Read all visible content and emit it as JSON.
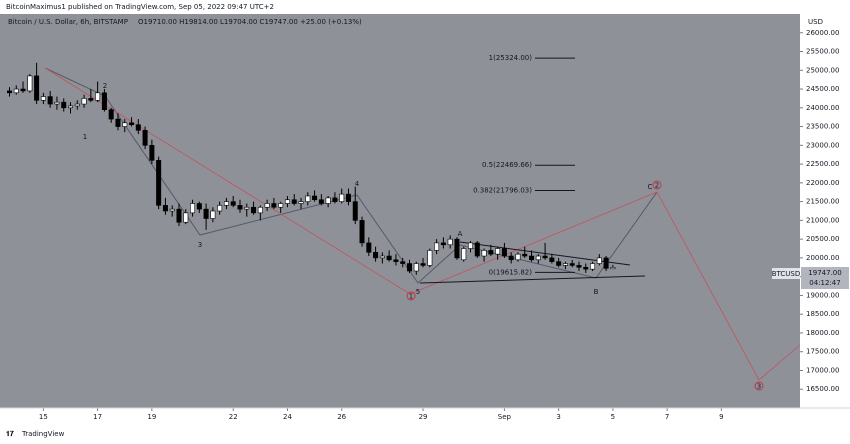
{
  "chart_data": {
    "type": "candlestick",
    "header": "BitcoinMaximus1 published on TradingView.com, Sep 05, 2022 09:47 UTC+2",
    "title": "Bitcoin / U.S. Dollar, 6h, BITSTAMP",
    "ohlc_legend": "O19710.00 H19814.00 L19704.00 C19747.00 +25.00 (+0.13%)",
    "y_axis_label": "USD",
    "symbol": "BTCUSD",
    "last_price_label": "19747.00",
    "countdown": "04:12:47",
    "footer": "TradingView",
    "up_color": "#ffffff",
    "down_color": "#000000",
    "background": "#8f9199",
    "ylim": [
      16000,
      26500
    ],
    "yticks": [
      {
        "value": 16500,
        "label": "16500.00"
      },
      {
        "value": 17000,
        "label": "17000.00"
      },
      {
        "value": 17500,
        "label": "17500.00"
      },
      {
        "value": 18000,
        "label": "18000.00"
      },
      {
        "value": 18500,
        "label": "18500.00"
      },
      {
        "value": 19000,
        "label": "19000.00"
      },
      {
        "value": 19500,
        "label": "19500.00"
      },
      {
        "value": 20000,
        "label": "20000.00"
      },
      {
        "value": 20500,
        "label": "20500.00"
      },
      {
        "value": 21000,
        "label": "21000.00"
      },
      {
        "value": 21500,
        "label": "21500.00"
      },
      {
        "value": 22000,
        "label": "22000.00"
      },
      {
        "value": 22500,
        "label": "22500.00"
      },
      {
        "value": 23000,
        "label": "23000.00"
      },
      {
        "value": 23500,
        "label": "23500.00"
      },
      {
        "value": 24000,
        "label": "24000.00"
      },
      {
        "value": 24500,
        "label": "24500.00"
      },
      {
        "value": 25000,
        "label": "25000.00"
      },
      {
        "value": 25500,
        "label": "25500.00"
      },
      {
        "value": 26000,
        "label": "26000.00"
      }
    ],
    "xlim": [
      -1.4,
      116.6
    ],
    "xticks": [
      {
        "value": 5,
        "label": "15"
      },
      {
        "value": 13,
        "label": "17"
      },
      {
        "value": 21,
        "label": "19"
      },
      {
        "value": 33,
        "label": "22"
      },
      {
        "value": 41,
        "label": "24"
      },
      {
        "value": 49,
        "label": "26"
      },
      {
        "value": 61,
        "label": "29"
      },
      {
        "value": 73,
        "label": "Sep"
      },
      {
        "value": 81,
        "label": "3"
      },
      {
        "value": 89,
        "label": "5"
      },
      {
        "value": 97,
        "label": "7"
      },
      {
        "value": 105,
        "label": "9"
      }
    ],
    "ohlc": [
      [
        24450,
        24550,
        24300,
        24400
      ],
      [
        24400,
        24600,
        24350,
        24500
      ],
      [
        24500,
        24700,
        24400,
        24450
      ],
      [
        24450,
        24900,
        24400,
        24850
      ],
      [
        24850,
        25200,
        24100,
        24200
      ],
      [
        24200,
        24400,
        24100,
        24300
      ],
      [
        24300,
        24450,
        24000,
        24100
      ],
      [
        24100,
        24300,
        23950,
        24150
      ],
      [
        24150,
        24250,
        23900,
        24000
      ],
      [
        24000,
        24150,
        23850,
        24050
      ],
      [
        24050,
        24200,
        23950,
        24100
      ],
      [
        24100,
        24350,
        24000,
        24250
      ],
      [
        24250,
        24500,
        24150,
        24200
      ],
      [
        24200,
        24700,
        24150,
        24400
      ],
      [
        24400,
        24500,
        23900,
        23950
      ],
      [
        23950,
        24000,
        23600,
        23700
      ],
      [
        23700,
        23850,
        23400,
        23500
      ],
      [
        23500,
        23700,
        23350,
        23600
      ],
      [
        23600,
        23750,
        23500,
        23550
      ],
      [
        23550,
        23700,
        23300,
        23400
      ],
      [
        23400,
        23500,
        22900,
        23000
      ],
      [
        23000,
        23150,
        22500,
        22600
      ],
      [
        22600,
        22700,
        21300,
        21400
      ],
      [
        21400,
        21600,
        21150,
        21250
      ],
      [
        21250,
        21400,
        21100,
        21300
      ],
      [
        21300,
        21450,
        20850,
        20950
      ],
      [
        20950,
        21300,
        20900,
        21200
      ],
      [
        21200,
        21550,
        21100,
        21450
      ],
      [
        21450,
        21500,
        21200,
        21300
      ],
      [
        21300,
        21450,
        20750,
        21050
      ],
      [
        21050,
        21350,
        20950,
        21250
      ],
      [
        21250,
        21500,
        21150,
        21400
      ],
      [
        21400,
        21600,
        21300,
        21500
      ],
      [
        21500,
        21650,
        21350,
        21400
      ],
      [
        21400,
        21550,
        21200,
        21300
      ],
      [
        21300,
        21450,
        21100,
        21350
      ],
      [
        21350,
        21500,
        21150,
        21200
      ],
      [
        21200,
        21400,
        21000,
        21350
      ],
      [
        21350,
        21550,
        21250,
        21450
      ],
      [
        21450,
        21600,
        21300,
        21350
      ],
      [
        21350,
        21500,
        21200,
        21450
      ],
      [
        21450,
        21650,
        21350,
        21550
      ],
      [
        21550,
        21700,
        21400,
        21450
      ],
      [
        21450,
        21600,
        21300,
        21500
      ],
      [
        21500,
        21750,
        21400,
        21650
      ],
      [
        21650,
        21800,
        21500,
        21550
      ],
      [
        21550,
        21700,
        21400,
        21450
      ],
      [
        21450,
        21650,
        21350,
        21600
      ],
      [
        21600,
        21750,
        21450,
        21500
      ],
      [
        21500,
        21850,
        21450,
        21700
      ],
      [
        21700,
        21850,
        21400,
        21500
      ],
      [
        21500,
        21900,
        20900,
        21000
      ],
      [
        21000,
        21100,
        20300,
        20400
      ],
      [
        20400,
        20550,
        20050,
        20150
      ],
      [
        20150,
        20300,
        19900,
        20000
      ],
      [
        20000,
        20150,
        19850,
        20050
      ],
      [
        20050,
        20200,
        19900,
        19950
      ],
      [
        19950,
        20100,
        19800,
        19900
      ],
      [
        19900,
        20000,
        19750,
        19850
      ],
      [
        19850,
        19950,
        19600,
        19650
      ],
      [
        19650,
        19900,
        19550,
        19850
      ],
      [
        19850,
        20000,
        19750,
        19800
      ],
      [
        19800,
        20250,
        19750,
        20200
      ],
      [
        20200,
        20500,
        20100,
        20400
      ],
      [
        20400,
        20550,
        20250,
        20350
      ],
      [
        20350,
        20600,
        20250,
        20500
      ],
      [
        20500,
        20550,
        19950,
        20000
      ],
      [
        19950,
        20300,
        19900,
        20250
      ],
      [
        20250,
        20450,
        20150,
        20400
      ],
      [
        20400,
        20450,
        20000,
        20050
      ],
      [
        20050,
        20250,
        19900,
        20200
      ],
      [
        20200,
        20350,
        20050,
        20100
      ],
      [
        20100,
        20300,
        19950,
        20250
      ],
      [
        20250,
        20400,
        20000,
        20050
      ],
      [
        20050,
        20150,
        19850,
        19950
      ],
      [
        19950,
        20150,
        19900,
        20100
      ],
      [
        20100,
        20300,
        20000,
        20050
      ],
      [
        20050,
        20200,
        19900,
        19950
      ],
      [
        19950,
        20100,
        19850,
        20050
      ],
      [
        20050,
        20400,
        19950,
        20000
      ],
      [
        20000,
        20100,
        19850,
        19900
      ],
      [
        19900,
        20000,
        19750,
        19800
      ],
      [
        19800,
        19900,
        19700,
        19850
      ],
      [
        19850,
        19950,
        19750,
        19800
      ],
      [
        19800,
        19900,
        19650,
        19750
      ],
      [
        19750,
        19850,
        19600,
        19700
      ],
      [
        19700,
        19900,
        19650,
        19850
      ],
      [
        19850,
        20100,
        19800,
        20000
      ],
      [
        20000,
        20050,
        19650,
        19722
      ],
      [
        19710,
        19814,
        19704,
        19747
      ]
    ],
    "fib_levels": [
      {
        "price": 25324,
        "label": "1(25324.00)"
      },
      {
        "price": 22469.66,
        "label": "0.5(22469.66)"
      },
      {
        "price": 21796.03,
        "label": "0.382(21796.03)"
      },
      {
        "price": 19615.82,
        "label": "0(19615.82)"
      }
    ],
    "wave_labels": [
      "1",
      "2",
      "3",
      "4",
      "5",
      "A",
      "B",
      "C"
    ],
    "projection_labels": [
      "1",
      "2",
      "3"
    ]
  }
}
